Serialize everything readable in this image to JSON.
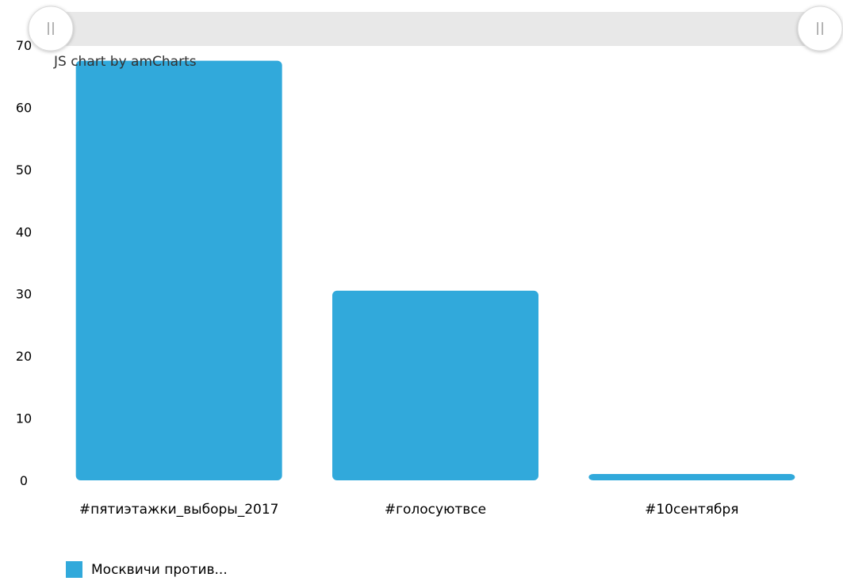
{
  "chart_data": {
    "type": "bar",
    "categories": [
      "#пятиэтажки_выборы_2017",
      "#голосуютвсе",
      "#10сентября"
    ],
    "series": [
      {
        "name": "Москвичи против...",
        "values": [
          67.5,
          30.5,
          0.5
        ],
        "color": "#31a9db"
      }
    ],
    "ylim": [
      0,
      70
    ],
    "yticks": [
      0,
      10,
      20,
      30,
      40,
      50,
      60,
      70
    ],
    "grid": false,
    "legend_position": "bottom-left"
  },
  "credit": "JS chart by amCharts",
  "legend": {
    "label": "Москвичи против..."
  },
  "scrollbar": {
    "left_grip_icon": "grip-icon",
    "right_grip_icon": "grip-icon",
    "track_color": "#e8e8e8",
    "grip_color": "#ffffff"
  }
}
